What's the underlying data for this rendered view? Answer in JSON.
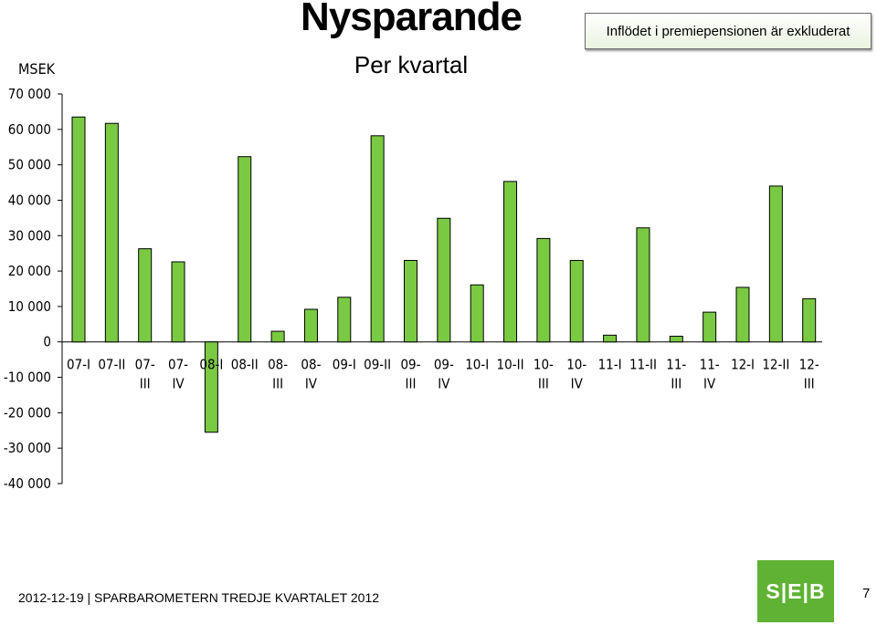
{
  "slide": {
    "title": "Nysparande",
    "subtitle": "Per kvartal",
    "note": "Inflödet i premiepensionen är exkluderat",
    "unit": "MSEK",
    "footer": "2012-12-19  |  SPARBAROMETERN TREDJE KVARTALET 2012",
    "logo_text": "S|E|B",
    "page_number": "7"
  },
  "colors": {
    "bar": "#7ac943",
    "logo": "#5fb233"
  },
  "chart_data": {
    "type": "bar",
    "title": "Nysparande",
    "subtitle": "Per kvartal",
    "ylabel": "MSEK",
    "ylim": [
      -40000,
      70000
    ],
    "yticks": [
      70000,
      60000,
      50000,
      40000,
      30000,
      20000,
      10000,
      0,
      -10000,
      -20000,
      -30000,
      -40000
    ],
    "ytick_labels": [
      "70 000",
      "60 000",
      "50 000",
      "40 000",
      "30 000",
      "20 000",
      "10 000",
      "0",
      "-10 000",
      "-20 000",
      "-30 000",
      "-40 000"
    ],
    "categories": [
      "07-I",
      "07-II",
      "07-III",
      "07-IV",
      "08-I",
      "08-II",
      "08-III",
      "08-IV",
      "09-I",
      "09-II",
      "09-III",
      "09-IV",
      "10-I",
      "10-II",
      "10-III",
      "10-IV",
      "11-I",
      "11-II",
      "11-III",
      "11-IV",
      "12-I",
      "12-II",
      "12-III"
    ],
    "category_labels": [
      [
        "07-I"
      ],
      [
        "07-II"
      ],
      [
        "07-",
        "III"
      ],
      [
        "07-",
        "IV"
      ],
      [
        "08-I"
      ],
      [
        "08-II"
      ],
      [
        "08-",
        "III"
      ],
      [
        "08-",
        "IV"
      ],
      [
        "09-I"
      ],
      [
        "09-II"
      ],
      [
        "09-",
        "III"
      ],
      [
        "09-",
        "IV"
      ],
      [
        "10-I"
      ],
      [
        "10-II"
      ],
      [
        "10-",
        "III"
      ],
      [
        "10-",
        "IV"
      ],
      [
        "11-I"
      ],
      [
        "11-II"
      ],
      [
        "11-",
        "III"
      ],
      [
        "11-",
        "IV"
      ],
      [
        "12-I"
      ],
      [
        "12-II"
      ],
      [
        "12-",
        "III"
      ]
    ],
    "values": [
      63500,
      61700,
      26300,
      22600,
      -25500,
      52300,
      3000,
      9200,
      12600,
      58200,
      23000,
      34900,
      16100,
      45300,
      29200,
      23000,
      1900,
      32200,
      1600,
      8400,
      15400,
      44000,
      12200
    ],
    "grid": false,
    "legend": "none"
  }
}
